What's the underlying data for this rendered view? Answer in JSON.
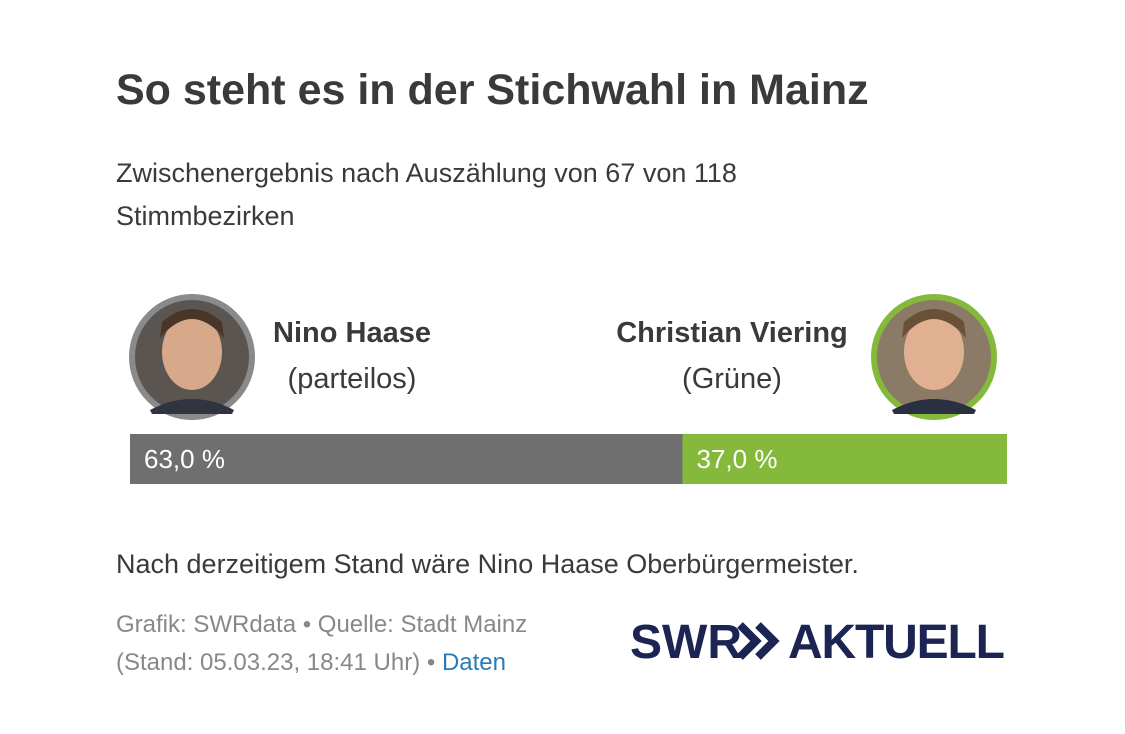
{
  "chart_data": {
    "type": "stacked_bar",
    "title": "So steht es in der Stichwahl in Mainz",
    "subtitle": "Zwischenergebnis nach Auszählung von 67 von 118 Stimmbezirken",
    "series": [
      {
        "name": "Nino Haase",
        "party": "(parteilos)",
        "color": "#6f6f6f",
        "values": [
          63
        ],
        "value_labels": [
          "63,0 %"
        ]
      },
      {
        "name": "Christian Viering",
        "party": "(Grüne)",
        "color": "#84b93b",
        "values": [
          37
        ],
        "value_labels": [
          "37,0 %"
        ]
      }
    ],
    "note": "Nach derzeitigem Stand wäre Nino Haase Oberbürgermeister.",
    "source": "Grafik: SWRdata • Quelle: Stadt Mainz (Stand: 05.03.23, 18:41 Uhr) •",
    "link": "Daten",
    "logo": {
      "left": "SWR",
      "right": "AKTUELL"
    }
  }
}
